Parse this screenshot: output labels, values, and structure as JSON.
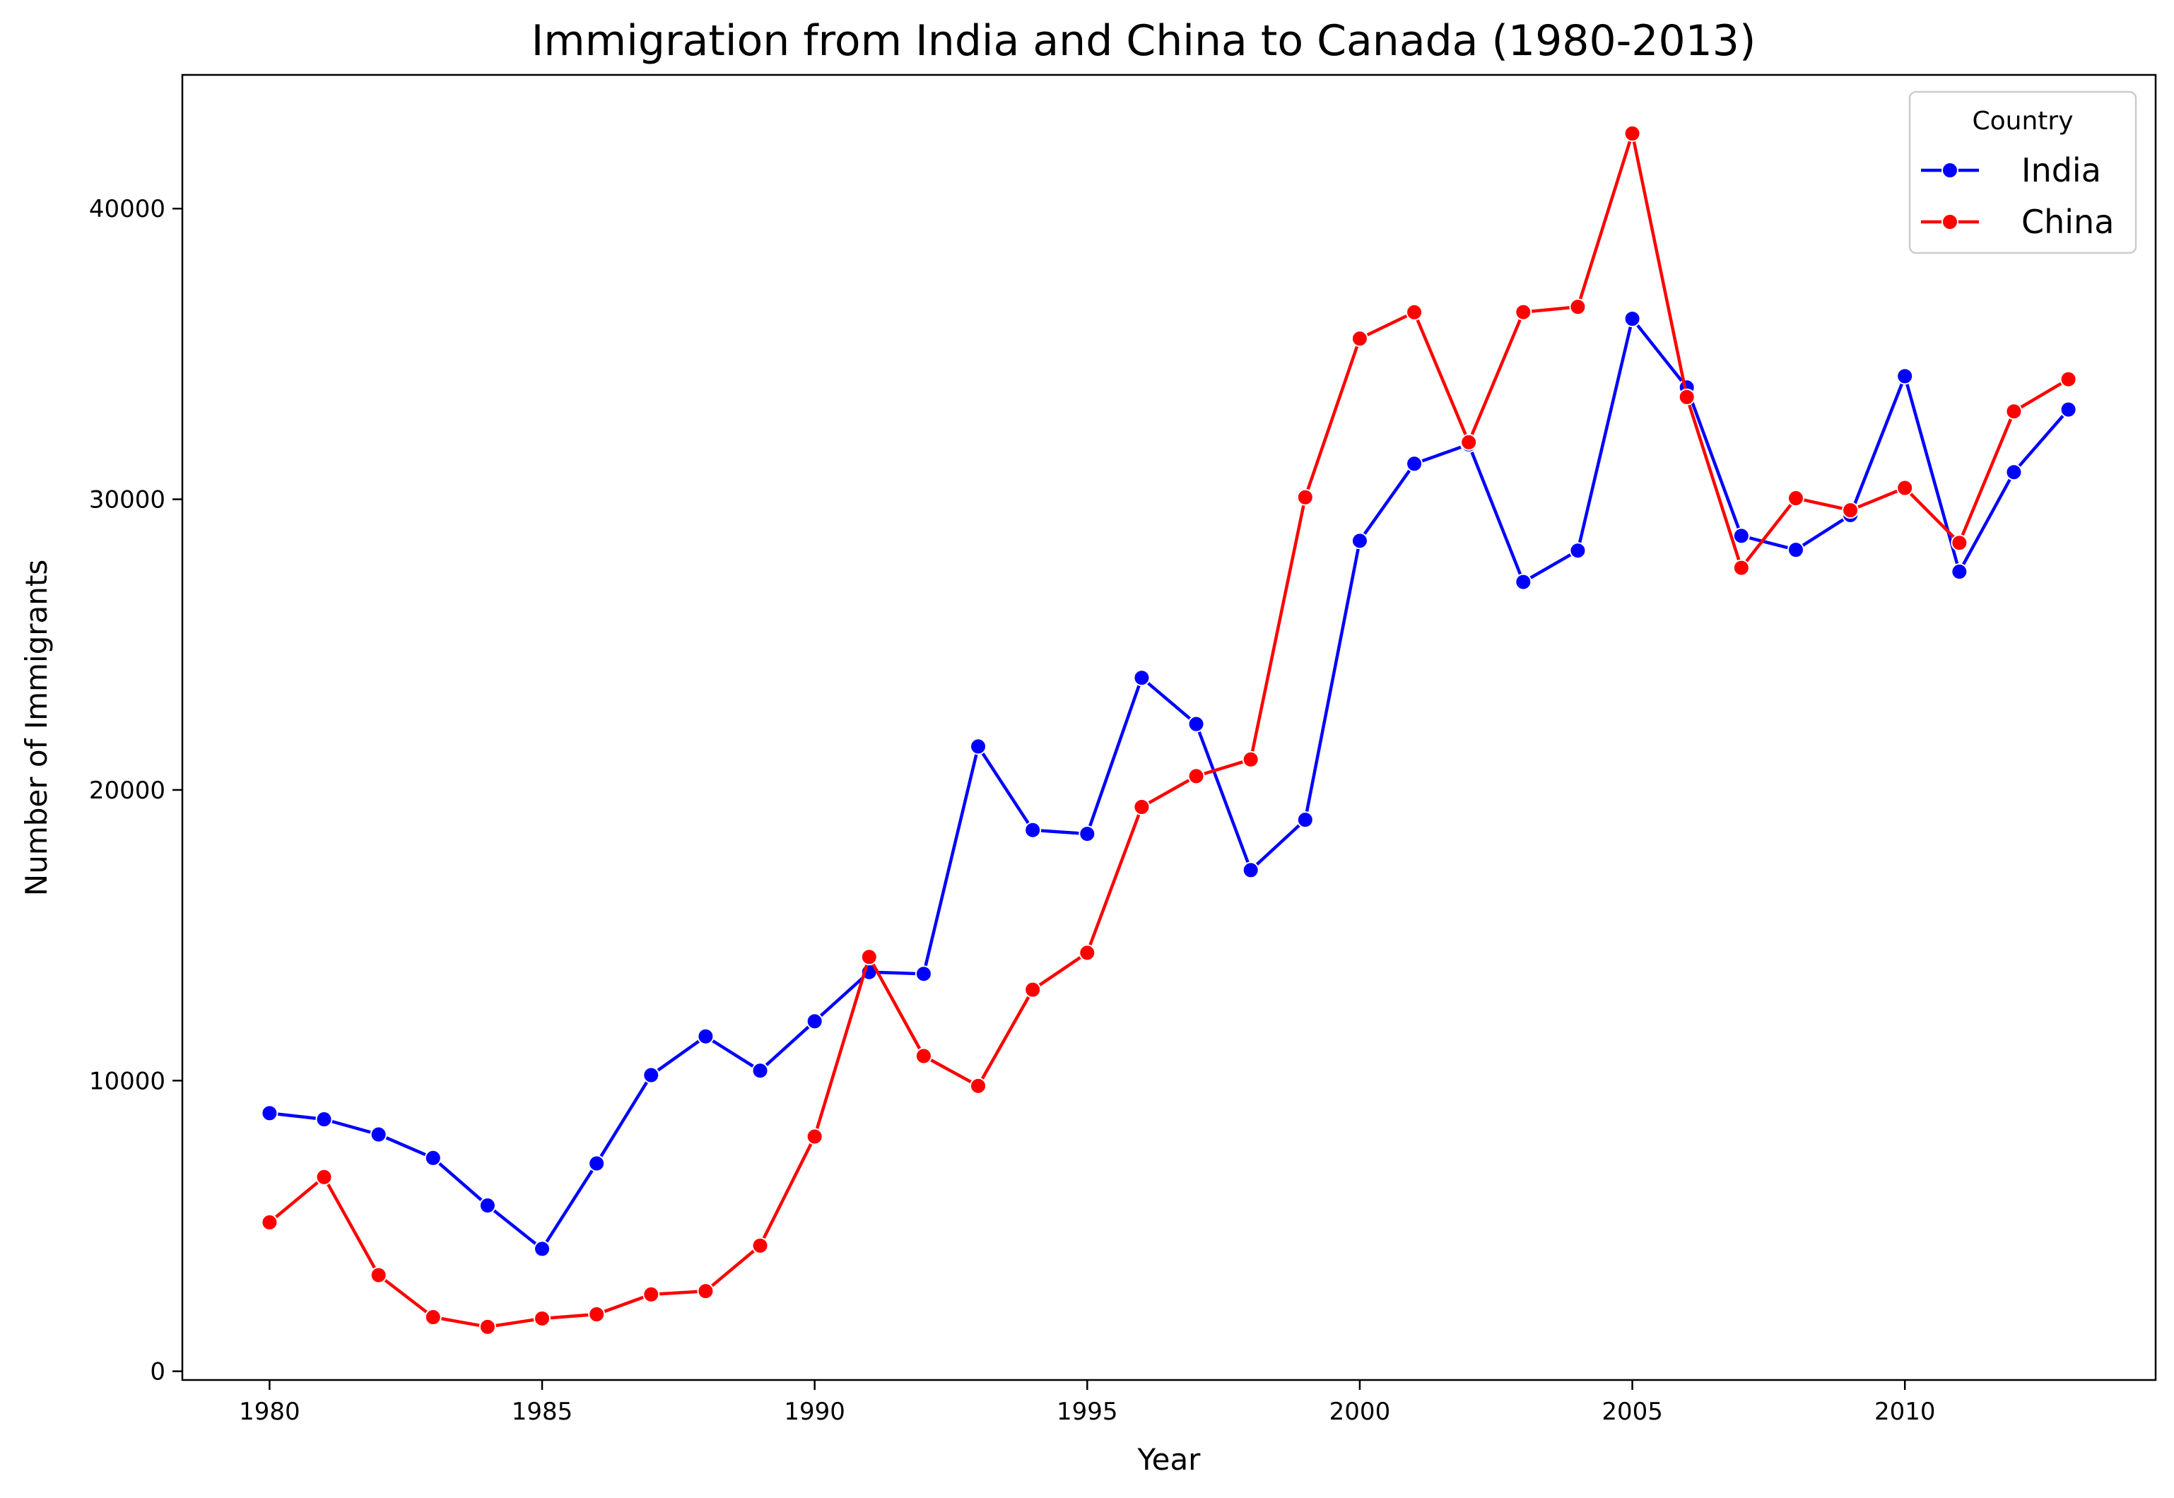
{
  "chart_data": {
    "type": "line",
    "title": "Immigration from India and China to Canada (1980-2013)",
    "xlabel": "Year",
    "ylabel": "Number of Immigrants",
    "xlim": [
      1978.4,
      2014.6
    ],
    "ylim": [
      -300,
      44600
    ],
    "xticks": [
      1980,
      1985,
      1990,
      1995,
      2000,
      2005,
      2010
    ],
    "yticks": [
      0,
      10000,
      20000,
      30000,
      40000
    ],
    "grid": false,
    "legend": {
      "title": "Country",
      "position": "top-right"
    },
    "x": [
      1980,
      1981,
      1982,
      1983,
      1984,
      1985,
      1986,
      1987,
      1988,
      1989,
      1990,
      1991,
      1992,
      1993,
      1994,
      1995,
      1996,
      1997,
      1998,
      1999,
      2000,
      2001,
      2002,
      2003,
      2004,
      2005,
      2006,
      2007,
      2008,
      2009,
      2010,
      2011,
      2012,
      2013
    ],
    "series": [
      {
        "name": "India",
        "color": "#0000ff",
        "values": [
          8880,
          8670,
          8147,
          7338,
          5704,
          4211,
          7150,
          10189,
          11522,
          10343,
          12041,
          13734,
          13673,
          21496,
          18620,
          18489,
          23859,
          22268,
          17241,
          18974,
          28572,
          31223,
          31889,
          27155,
          28235,
          36210,
          33848,
          28742,
          28261,
          29456,
          34235,
          27509,
          30933,
          33087
        ]
      },
      {
        "name": "China",
        "color": "#ff0000",
        "values": [
          5123,
          6682,
          3308,
          1863,
          1527,
          1816,
          1960,
          2643,
          2758,
          4323,
          8076,
          14255,
          10846,
          9817,
          13128,
          14398,
          19415,
          20475,
          21049,
          30069,
          35529,
          36434,
          31961,
          36439,
          36619,
          42584,
          33518,
          27642,
          30037,
          29622,
          30391,
          28502,
          33024,
          34129
        ]
      }
    ]
  }
}
